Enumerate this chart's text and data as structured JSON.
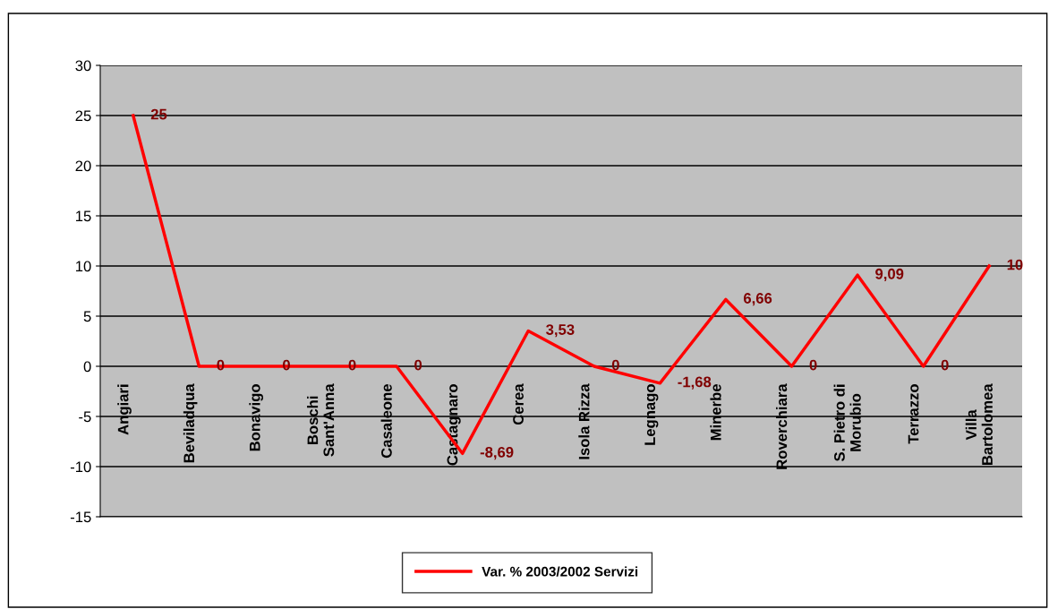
{
  "chart_data": {
    "type": "line",
    "categories": [
      "Angiari",
      "Beviladqua",
      "Bonavigo",
      "Boschi\nSant'Anna",
      "Casaleone",
      "Castagnaro",
      "Cerea",
      "Isola Rizza",
      "Legnago",
      "Minerbe",
      "Roverchiara",
      "S. Pietro di\nMorubio",
      "Terrazzo",
      "Villa\nBartolomea"
    ],
    "series": [
      {
        "name": "Var. % 2003/2002 Servizi",
        "color": "#ff0000",
        "values": [
          25,
          0,
          0,
          0,
          0,
          -8.69,
          3.53,
          0,
          -1.68,
          6.66,
          0,
          9.09,
          0,
          10
        ],
        "value_labels": [
          "25",
          "0",
          "0",
          "0",
          "0",
          "-8,69",
          "3,53",
          "0",
          "-1,68",
          "6,66",
          "0",
          "9,09",
          "0",
          "10"
        ]
      }
    ],
    "ylim": [
      -15,
      30
    ],
    "yticks": [
      -15,
      -10,
      -5,
      0,
      5,
      10,
      15,
      20,
      25,
      30
    ],
    "grid": "y",
    "legend": "bottom",
    "marker": "none",
    "line_style": "solid"
  }
}
